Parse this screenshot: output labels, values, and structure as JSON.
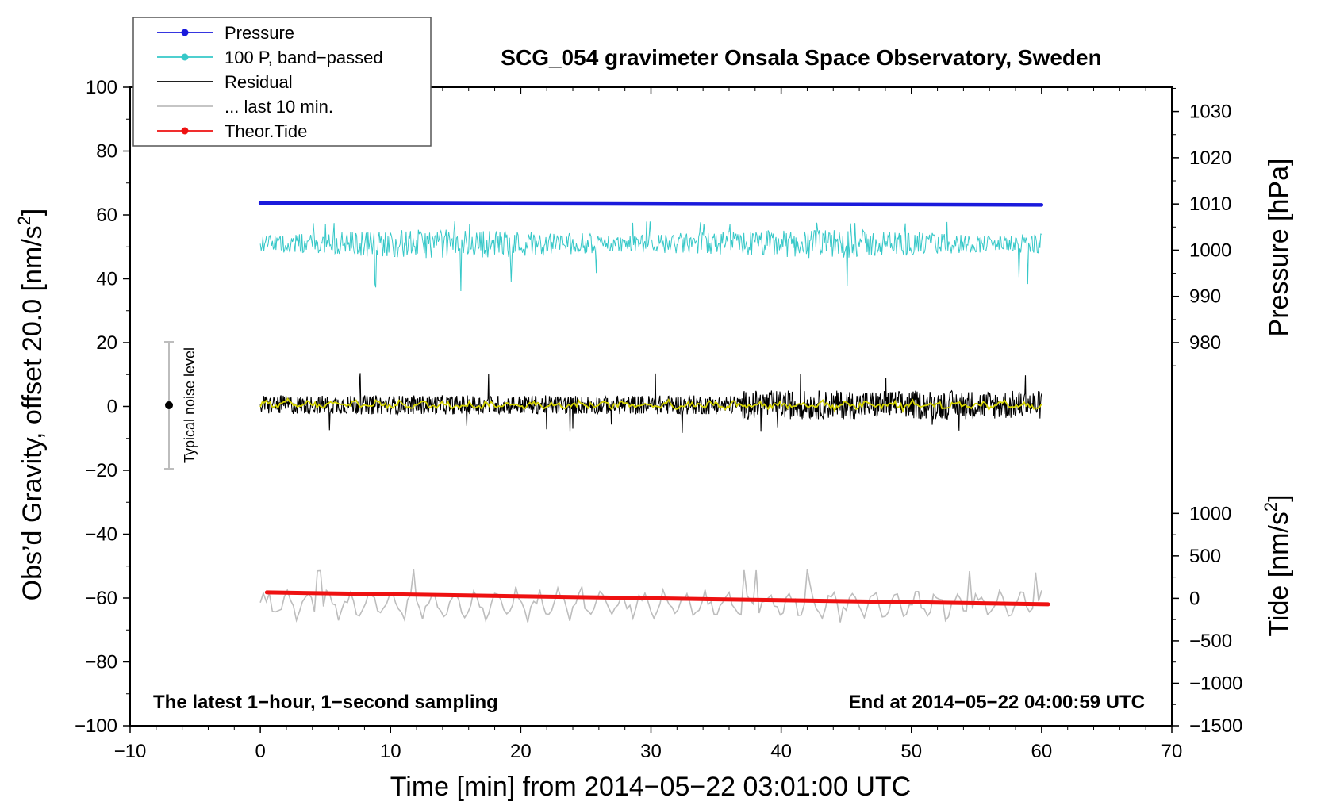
{
  "chart_data": {
    "type": "line",
    "title": "SCG_054 gravimeter Onsala Space Observatory, Sweden",
    "xlabel": "Time [min] from 2014−05−22 03:01:00 UTC",
    "ylabel_left": "Obs'd Gravity, offset 20.0 [nm/s²]",
    "ylabel_left_main": "Obs’d Gravity, offset 20.0 [nm/s",
    "ylabel_left_sup": "2",
    "ylabel_left_close": "]",
    "ylabel_right_top": "Pressure [hPa]",
    "ylabel_right_bottom": "Tide [nm/s²]",
    "ylabel_right_bottom_main": "Tide [nm/s",
    "ylabel_right_bottom_sup": "2",
    "ylabel_right_bottom_close": "]",
    "xlim": [
      -10,
      70
    ],
    "ylim": [
      -100,
      100
    ],
    "x_ticks": [
      -10,
      0,
      10,
      20,
      30,
      40,
      50,
      60,
      70
    ],
    "x_tick_labels": [
      "−10",
      "0",
      "10",
      "20",
      "30",
      "40",
      "50",
      "60",
      "70"
    ],
    "y_ticks": [
      -100,
      -80,
      -60,
      -40,
      -20,
      0,
      20,
      40,
      60,
      80,
      100
    ],
    "y_tick_labels": [
      "−100",
      "−80",
      "−60",
      "−40",
      "−20",
      "0",
      "20",
      "40",
      "60",
      "80",
      "100"
    ],
    "pressure_axis": {
      "ticks": [
        980,
        990,
        1000,
        1010,
        1020,
        1030
      ],
      "tick_labels": [
        "980",
        "990",
        "1000",
        "1010",
        "1020",
        "1030"
      ],
      "map_low": [
        980,
        20
      ],
      "map_high": [
        1030,
        92.4
      ]
    },
    "tide_axis": {
      "ticks": [
        -1500,
        -1000,
        -500,
        0,
        500,
        1000
      ],
      "tick_labels": [
        "−1500",
        "−1000",
        "−500",
        "0",
        "500",
        "1000"
      ],
      "map_low": [
        -1500,
        -100
      ],
      "map_high": [
        1000,
        -33.5
      ]
    },
    "legend": {
      "placement": "top-left",
      "entries": [
        {
          "label": "Pressure",
          "color": "#1a1adc",
          "marker": true
        },
        {
          "label": "100 P, band−passed",
          "color": "#36c8c8",
          "marker": true
        },
        {
          "label": "Residual",
          "color": "#000000",
          "marker": false
        },
        {
          "label": "... last 10 min.",
          "color": "#bdbdbd",
          "marker": false
        },
        {
          "label": "Theor.Tide",
          "color": "#ee1111",
          "marker": true
        }
      ]
    },
    "noise_bar": {
      "label": "Typical noise level",
      "x": -7,
      "center": 0,
      "half_range": 20
    },
    "annotation_left": "The latest 1−hour, 1−second sampling",
    "annotation_right": "End at 2014−05−22 04:00:59 UTC",
    "series": [
      {
        "name": "Pressure",
        "unit": "hPa",
        "color": "#1a1adc",
        "x_start": 0,
        "x_end": 60,
        "y_start": 1010.2,
        "y_end": 1009.8,
        "note": "nearly flat, slight decline"
      },
      {
        "name": "100 P, band−passed",
        "unit": "nm/s²",
        "color": "#36c8c8",
        "x_start": 0,
        "x_end": 60,
        "mean": 51,
        "min": 34,
        "max": 58,
        "style": "noisy"
      },
      {
        "name": "Residual",
        "unit": "nm/s²",
        "color": "#000000",
        "x_start": 0,
        "x_end": 60,
        "mean": 0.5,
        "min": -9,
        "max": 11,
        "style": "noisy"
      },
      {
        "name": "Residual smoothed",
        "unit": "nm/s²",
        "color": "#d4d400",
        "x_start": 0,
        "x_end": 60,
        "mean": 0.5,
        "min": -3,
        "max": 3,
        "style": "smooth"
      },
      {
        "name": "... last 10 min.",
        "unit": "nm/s²",
        "color": "#bdbdbd",
        "x_start": 0,
        "x_end": 60,
        "mean": -62,
        "min": -69,
        "max": -52,
        "style": "wavy"
      },
      {
        "name": "Theor.Tide",
        "unit": "nm/s²",
        "color": "#ee1111",
        "x_start": 0.5,
        "x_end": 60.5,
        "y_start": 70,
        "y_end": -70
      }
    ]
  }
}
